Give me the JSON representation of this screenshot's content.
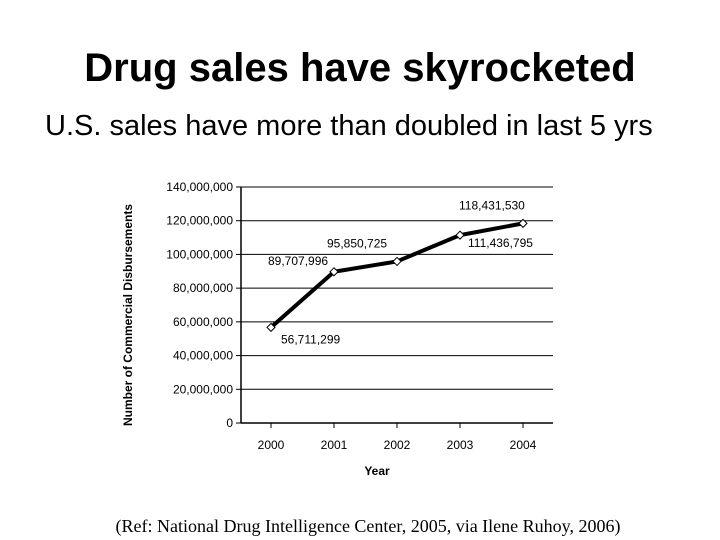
{
  "slide": {
    "title": "Drug sales have skyrocketed",
    "subtitle": "U.S. sales have more than doubled in last 5 yrs",
    "reference": "(Ref: National Drug Intelligence Center, 2005, via Ilene Ruhoy, 2006)"
  },
  "chart_data": {
    "type": "line",
    "title": "",
    "xlabel": "Year",
    "ylabel": "Number of Commercial Disbursements",
    "categories": [
      "2000",
      "2001",
      "2002",
      "2003",
      "2004"
    ],
    "series": [
      {
        "name": "Commercial Disbursements",
        "values": [
          56711299,
          89707996,
          95850725,
          111436795,
          118431530
        ]
      }
    ],
    "data_labels": [
      "56,711,299",
      "89,707,996",
      "95,850,725",
      "111,436,795",
      "118,431,530"
    ],
    "ylim": [
      0,
      140000000
    ],
    "yticks": [
      {
        "value": 0,
        "label": "0"
      },
      {
        "value": 20000000,
        "label": "20,000,000"
      },
      {
        "value": 40000000,
        "label": "40,000,000"
      },
      {
        "value": 60000000,
        "label": "60,000,000"
      },
      {
        "value": 80000000,
        "label": "80,000,000"
      },
      {
        "value": 100000000,
        "label": "100,000,000"
      },
      {
        "value": 120000000,
        "label": "120,000,000"
      },
      {
        "value": 140000000,
        "label": "140,000,000"
      }
    ],
    "grid": true,
    "colors": {
      "line": "#000000",
      "grid": "#000000",
      "marker_fill": "#ffffff"
    }
  }
}
